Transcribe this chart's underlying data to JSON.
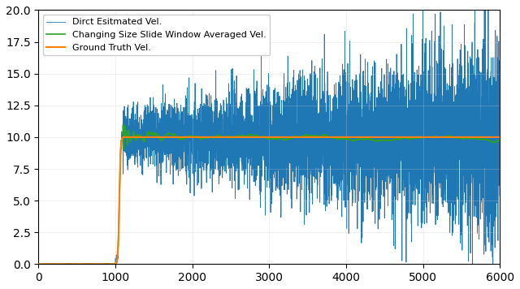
{
  "title": "",
  "xlabel": "",
  "ylabel": "",
  "xlim": [
    0,
    6000
  ],
  "ylim": [
    0,
    20
  ],
  "yticks": [
    0.0,
    2.5,
    5.0,
    7.5,
    10.0,
    12.5,
    15.0,
    17.5,
    20.0
  ],
  "xticks": [
    0,
    1000,
    2000,
    3000,
    4000,
    5000,
    6000
  ],
  "legend_labels": [
    "Dirct Esitmated Vel.",
    "Ground Truth Vel.",
    "Changing Size Slide Window Averaged Vel."
  ],
  "colors": [
    "#1f77b4",
    "#ff7f0e",
    "#2ca02c"
  ],
  "n_points": 6000,
  "ground_truth_start": 1000,
  "ground_truth_transition_end": 1100,
  "ground_truth_value": 10.0,
  "noise_seed": 42,
  "figsize": [
    6.4,
    3.56
  ],
  "dpi": 100
}
